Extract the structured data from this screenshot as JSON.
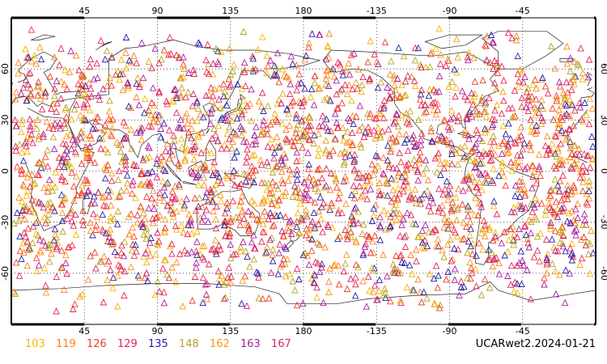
{
  "map": {
    "projection": "cylindrical-equidistant",
    "central_longitude": 0,
    "lon_range": [
      0,
      360
    ],
    "lat_range": [
      -90,
      90
    ],
    "grid": "dotted",
    "coastlines": "thin-black",
    "top_ticks": [
      "45",
      "90",
      "135",
      "180",
      "-135",
      "-90",
      "-45"
    ],
    "bottom_ticks": [
      "45",
      "90",
      "135",
      "180",
      "-135",
      "-90",
      "-45"
    ],
    "left_ticks": [
      "60",
      "30",
      "0",
      "-30",
      "-60"
    ],
    "right_ticks": [
      "60",
      "30",
      "0",
      "-30",
      "-60"
    ],
    "tick_values_lon": [
      45,
      90,
      135,
      180,
      225,
      270,
      315
    ],
    "tick_values_lat": [
      60,
      30,
      0,
      -30,
      -60
    ]
  },
  "legend": {
    "items": [
      {
        "label": "103",
        "color": "#f5b400"
      },
      {
        "label": "119",
        "color": "#ff7f1f"
      },
      {
        "label": "126",
        "color": "#f03c2a"
      },
      {
        "label": "129",
        "color": "#e8204f"
      },
      {
        "label": "135",
        "color": "#1f1fa8"
      },
      {
        "label": "148",
        "color": "#b5a41e"
      },
      {
        "label": "162",
        "color": "#f49a14"
      },
      {
        "label": "163",
        "color": "#a61ea0"
      },
      {
        "label": "167",
        "color": "#dd2460"
      }
    ]
  },
  "footer": {
    "product": "UCARwet2.2024-01-21"
  },
  "markers": {
    "symbol": "open-triangle",
    "note_count": 2600
  }
}
